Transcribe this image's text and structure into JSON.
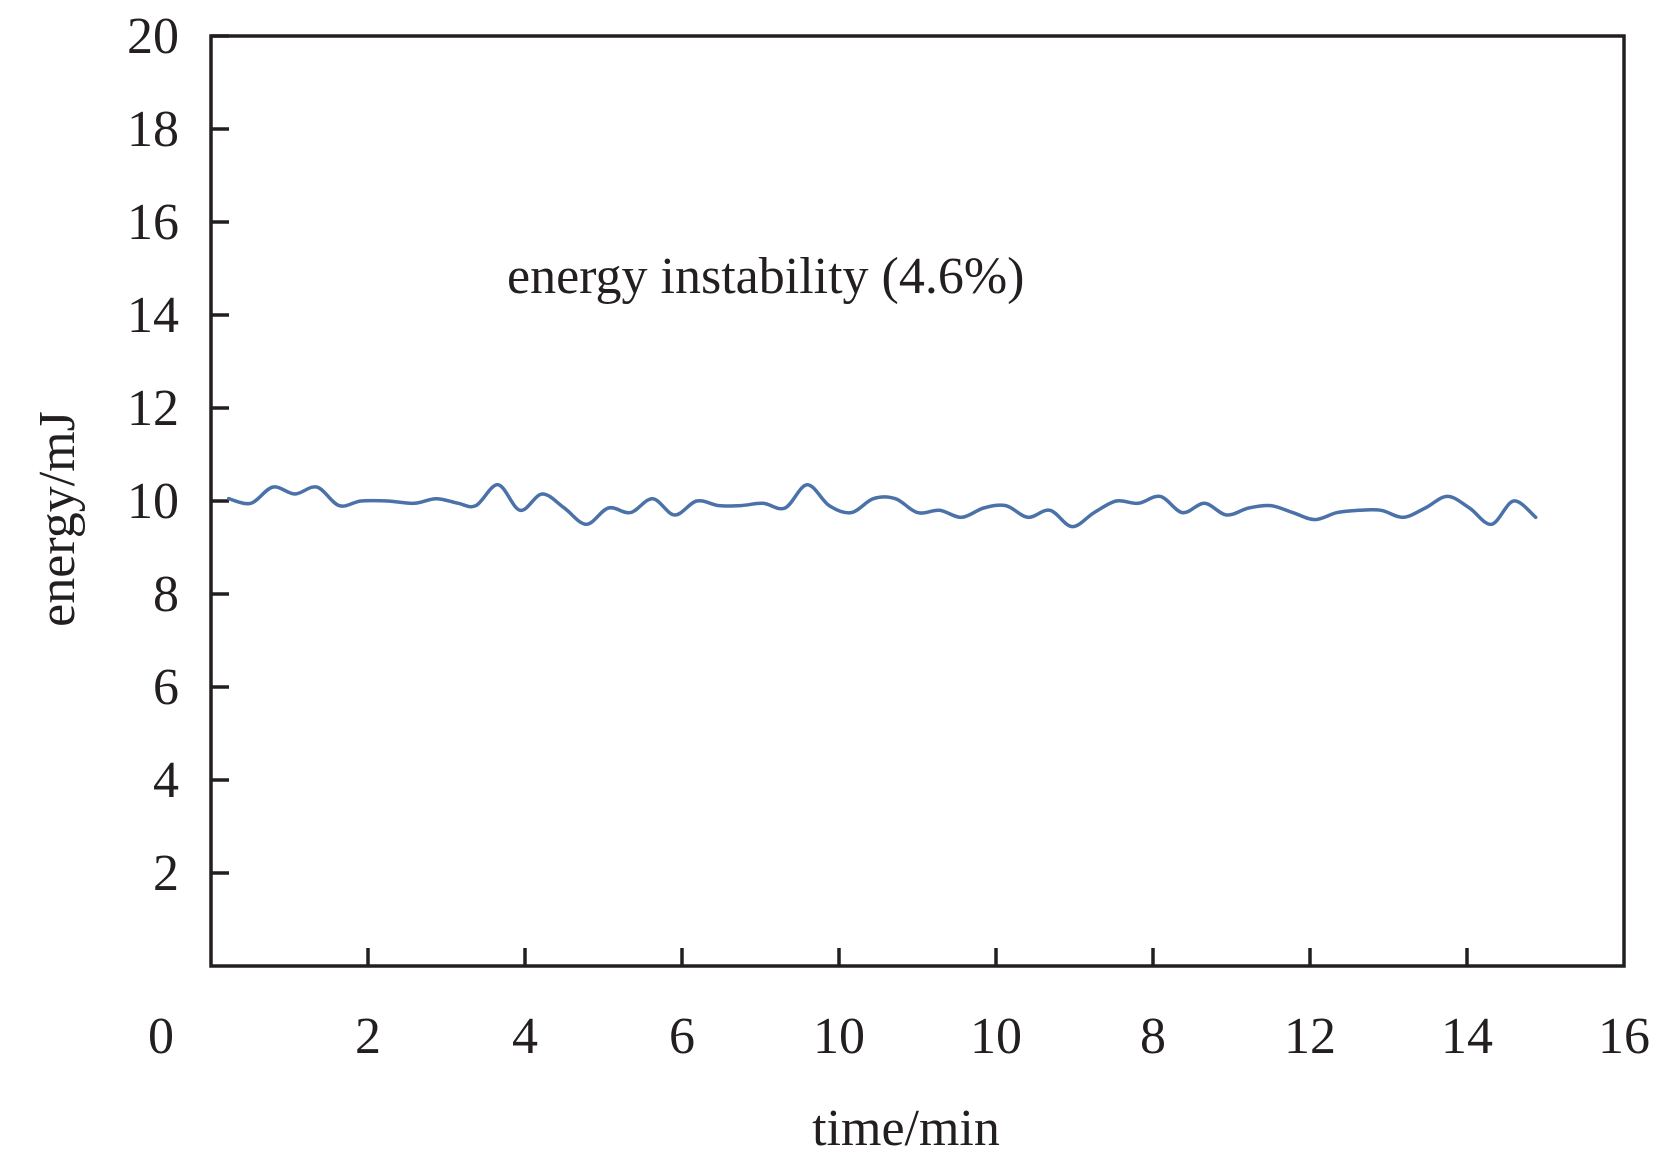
{
  "chart_data": {
    "type": "line",
    "title": "",
    "xlabel": "time/min",
    "ylabel": "energy/mJ",
    "xlim": [
      0,
      16
    ],
    "ylim": [
      0,
      20
    ],
    "x_tick_labels": [
      "0",
      "2",
      "4",
      "6",
      "10",
      "10",
      "8",
      "12",
      "14",
      "16"
    ],
    "y_tick_labels": [
      "2",
      "4",
      "6",
      "8",
      "10",
      "12",
      "14",
      "16",
      "18",
      "20"
    ],
    "y_ticks": [
      2,
      4,
      6,
      8,
      10,
      12,
      14,
      16,
      18,
      20
    ],
    "grid": false,
    "legend": "none",
    "annotation": "energy instability (4.6%)",
    "series": [
      {
        "color": "#4a72a8",
        "x": [
          0.2,
          0.45,
          0.7,
          0.95,
          1.2,
          1.45,
          1.7,
          2.0,
          2.3,
          2.55,
          2.8,
          3.0,
          3.25,
          3.5,
          3.75,
          4.0,
          4.25,
          4.5,
          4.75,
          5.0,
          5.25,
          5.5,
          5.75,
          6.0,
          6.25,
          6.5,
          6.75,
          7.0,
          7.25,
          7.5,
          7.75,
          8.0,
          8.25,
          8.5,
          8.75,
          9.0,
          9.25,
          9.5,
          9.75,
          10.0,
          10.25,
          10.5,
          10.75,
          11.0,
          11.25,
          11.5,
          11.75,
          12.0,
          12.25,
          12.5,
          12.75,
          13.0,
          13.25,
          13.5,
          13.75,
          14.0,
          14.25,
          14.5,
          14.75,
          15.0
        ],
        "y": [
          10.05,
          9.95,
          10.3,
          10.15,
          10.3,
          9.9,
          10.0,
          10.0,
          9.95,
          10.05,
          9.95,
          9.9,
          10.35,
          9.8,
          10.15,
          9.85,
          9.5,
          9.85,
          9.75,
          10.05,
          9.7,
          10.0,
          9.9,
          9.9,
          9.95,
          9.85,
          10.35,
          9.9,
          9.75,
          10.05,
          10.05,
          9.75,
          9.8,
          9.65,
          9.85,
          9.9,
          9.65,
          9.8,
          9.45,
          9.75,
          10.0,
          9.95,
          10.1,
          9.75,
          9.95,
          9.7,
          9.85,
          9.9,
          9.75,
          9.6,
          9.75,
          9.8,
          9.8,
          9.65,
          9.85,
          10.1,
          9.85,
          9.5,
          10.0,
          9.65
        ]
      }
    ]
  }
}
